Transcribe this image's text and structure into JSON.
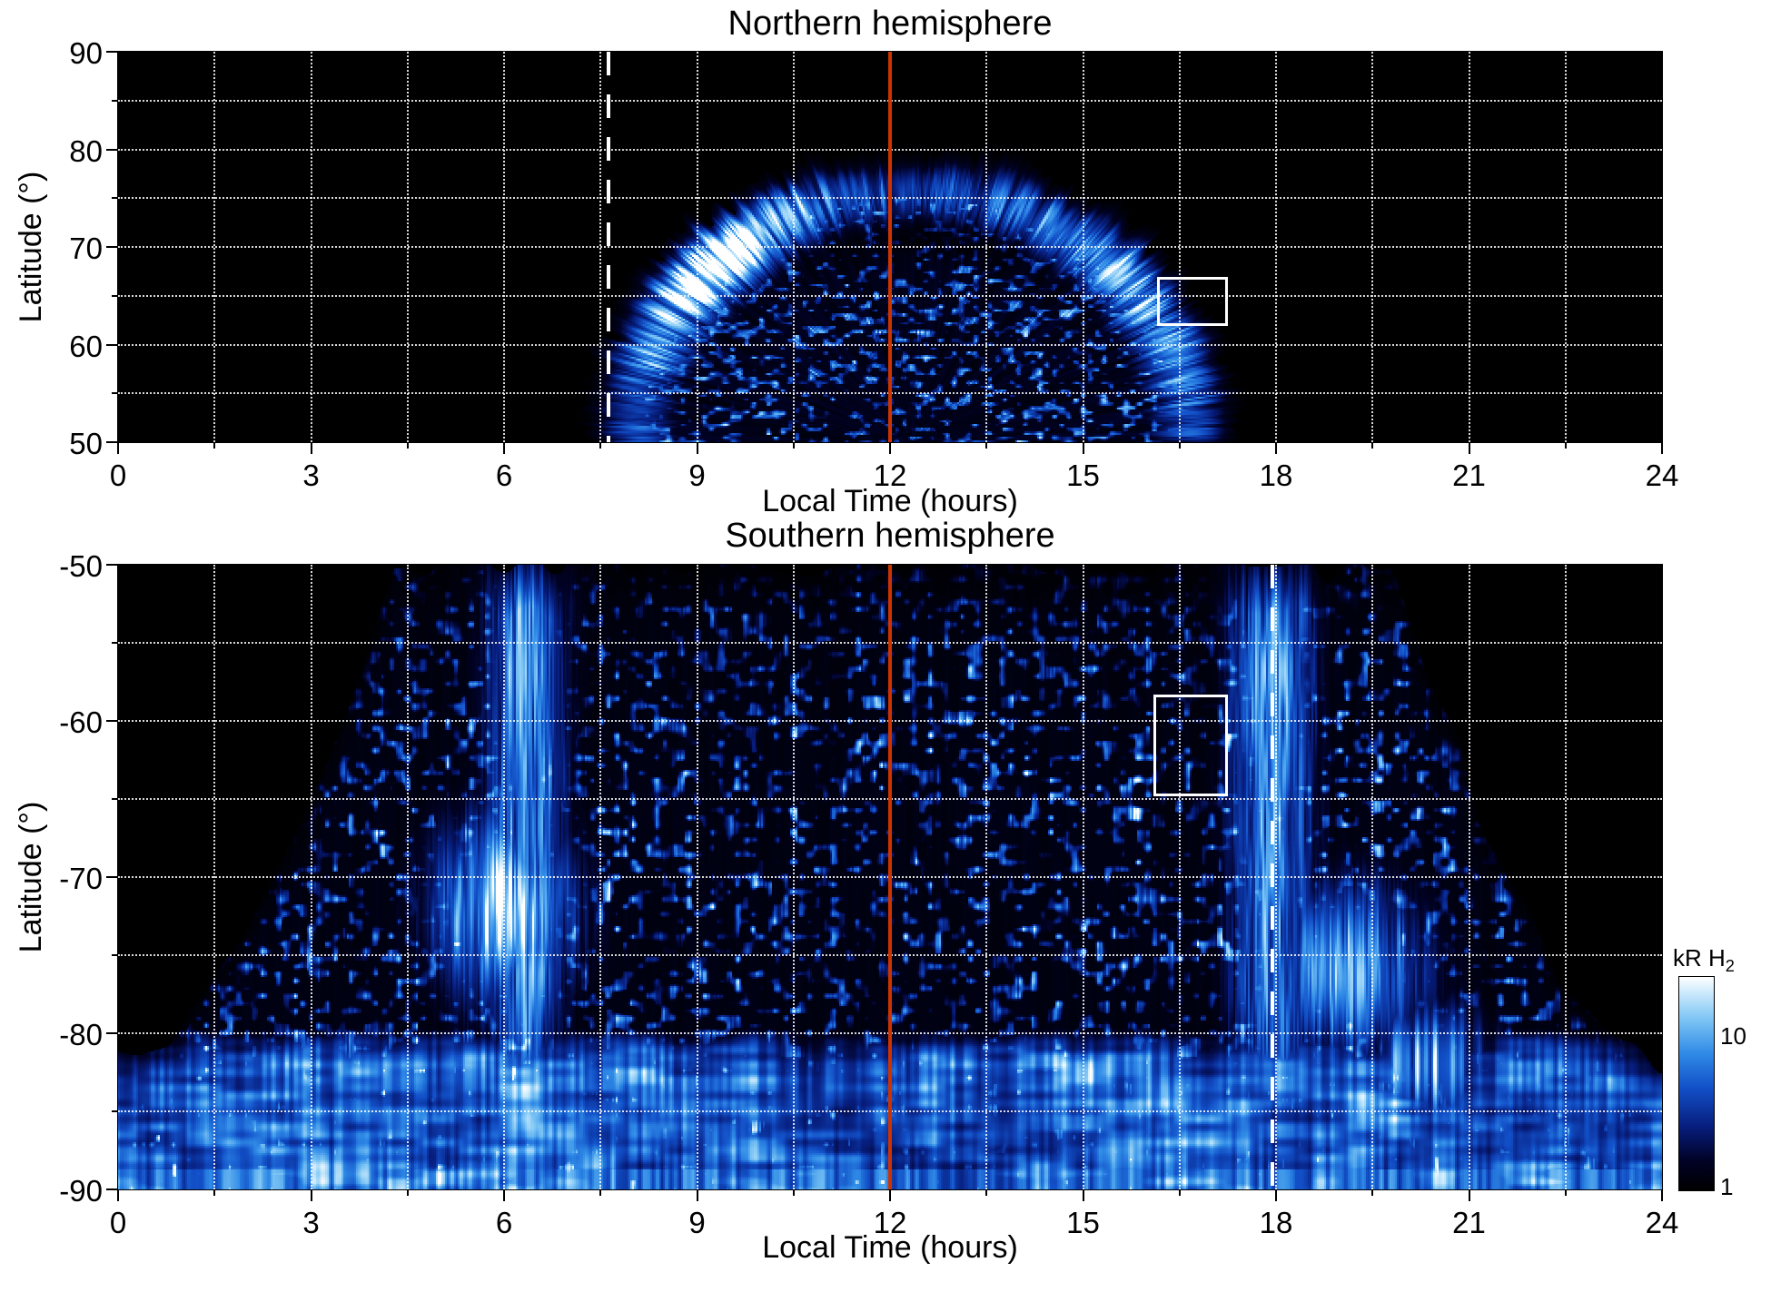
{
  "figure": {
    "background_color": "#ffffff",
    "text_color": "#000000"
  },
  "chart_data": [
    {
      "id": "north",
      "type": "heatmap",
      "title": "Northern hemisphere",
      "xlabel": "Local Time (hours)",
      "ylabel": "Latitude (°)",
      "xlim": [
        0,
        24
      ],
      "ylim": [
        50,
        90
      ],
      "xticks": [
        0,
        3,
        6,
        9,
        12,
        15,
        18,
        21,
        24
      ],
      "yticks": [
        90,
        80,
        70,
        60,
        50
      ],
      "grid": {
        "x_step": 1.5,
        "y_step": 5,
        "style": "dotted",
        "color": "#ffffff"
      },
      "annotations": {
        "noon_line_lt": 12,
        "noon_line_color": "#cc3300",
        "dashed_line_lt": 7.62,
        "dashed_line_color": "#ffffff",
        "highlight_box": {
          "lt_min": 16.15,
          "lt_max": 17.25,
          "lat_min": 61.9,
          "lat_max": 66.9,
          "color": "#ffffff"
        }
      },
      "emission_model": {
        "seed": 11,
        "dome_center_lt": 12.35,
        "dome_lt_radius": 5.15,
        "dome_lat_base": 50,
        "dome_lat_radius": 30.5,
        "band_r_center": 0.84,
        "band_r_width": 0.1,
        "dawn_bright_lt": 8.7,
        "notch_lt": 12,
        "notch_lat": 80
      },
      "description": "UV auroral H2 emission vs local time and latitude. Emission dome between ~07:20 and ~17:30 LT reaching ~80° near noon; bright dawn-side auroral arc near 64-75° latitude; dark gap below the arc; speckled diffuse emission down to 50°; black (no data) elsewhere. Solid red line marks local noon; white dashed line at ~07:40 LT; white box highlights region near 16-17 LT, 62-67°."
    },
    {
      "id": "south",
      "type": "heatmap",
      "title": "Southern hemisphere",
      "xlabel": "Local Time (hours)",
      "ylabel": "Latitude (°)",
      "xlim": [
        0,
        24
      ],
      "ylim": [
        -90,
        -50
      ],
      "xticks": [
        0,
        3,
        6,
        9,
        12,
        15,
        18,
        21,
        24
      ],
      "yticks": [
        -50,
        -60,
        -70,
        -80,
        -90
      ],
      "grid": {
        "x_step": 1.5,
        "y_step": 5,
        "style": "dotted",
        "color": "#ffffff"
      },
      "annotations": {
        "noon_line_lt": 12,
        "noon_line_color": "#cc3300",
        "dashed_line_lt": 17.95,
        "dashed_line_color": "#ffffff",
        "highlight_box": {
          "lt_min": 16.1,
          "lt_max": 17.25,
          "lat_min": -64.8,
          "lat_max": -58.3,
          "color": "#ffffff"
        }
      },
      "emission_model": {
        "seed": 77,
        "full_lo": 4.3,
        "full_hi": 19.8,
        "edge_colat": 8,
        "edge_pow": 1.7,
        "polar_band_colat": 10,
        "dawn_blob_lt": 6.0,
        "dawn_blob_colat": 18,
        "dawn_column_lt": 6.35,
        "dusk_blob_lt": 19.1,
        "dusk_blob_colat": 14,
        "dusk_column_lt": 17.95,
        "dusk_low_blob_lt": 20.4
      },
      "description": "UV auroral H2 emission vs local time and latitude. Dense speckled emission covering ~04:30-19:45 LT from -50° poleward; very bright dawn arc/patch near 05-07 LT at -68 to -76°; bright dusk arcs near 17:30-20:30 LT; continuous bright banded emission poleward of -82° at all local times; black (no data) in the pre-dawn and post-dusk upper corners. Solid red line marks local noon; white dashed line at ~18:00 LT; white box highlights region near 16-17 LT, -58 to -65°."
    }
  ],
  "colorbar": {
    "title_main": "kR H",
    "title_sub": "2",
    "scale": "log",
    "range": [
      1,
      25
    ],
    "ticks": [
      {
        "value": 10,
        "label": "10"
      },
      {
        "value": 1,
        "label": "1"
      }
    ],
    "colormap": [
      {
        "v": 0.0,
        "color": "#000000"
      },
      {
        "v": 0.14,
        "color": "#010226"
      },
      {
        "v": 0.3,
        "color": "#071e7e"
      },
      {
        "v": 0.48,
        "color": "#1250c8"
      },
      {
        "v": 0.64,
        "color": "#2f8ae6"
      },
      {
        "v": 0.8,
        "color": "#7cc4f4"
      },
      {
        "v": 0.92,
        "color": "#c8e8fb"
      },
      {
        "v": 1.0,
        "color": "#ffffff"
      }
    ]
  }
}
